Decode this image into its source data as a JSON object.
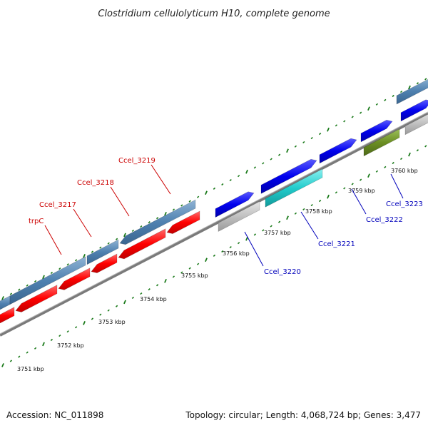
{
  "map": {
    "title": "Clostridium cellulolyticum H10, complete genome",
    "accession": "Accession: NC_011898",
    "summary": "Topology: circular; Length: 4,068,724 bp; Genes: 3,477",
    "kbp_labels": [
      "3751 kbp",
      "3752 kbp",
      "3753 kbp",
      "3754 kbp",
      "3755 kbp",
      "3756 kbp",
      "3757 kbp",
      "3758 kbp",
      "3759 kbp",
      "3760 kbp"
    ],
    "gene_labels": [
      {
        "text": "trpC",
        "strand": "reverse"
      },
      {
        "text": "Ccel_3217",
        "strand": "reverse"
      },
      {
        "text": "Ccel_3218",
        "strand": "reverse"
      },
      {
        "text": "Ccel_3219",
        "strand": "reverse"
      },
      {
        "text": "Ccel_3220",
        "strand": "forward"
      },
      {
        "text": "Ccel_3221",
        "strand": "forward"
      },
      {
        "text": "Ccel_3222",
        "strand": "forward"
      },
      {
        "text": "Ccel_3223",
        "strand": "forward"
      }
    ],
    "colors": {
      "backbone": "#808080",
      "cds_reverse": "#ff0000",
      "cds_forward": "#0000ee",
      "orf_outer": "#4f81b0",
      "label_reverse": "#cc0000",
      "label_forward": "#0000bb",
      "tick_green": "#1a7a1a",
      "cyan_block": "#22cccc",
      "olive_block": "#6b8e23",
      "gray_block": "#c0c0c0"
    }
  }
}
